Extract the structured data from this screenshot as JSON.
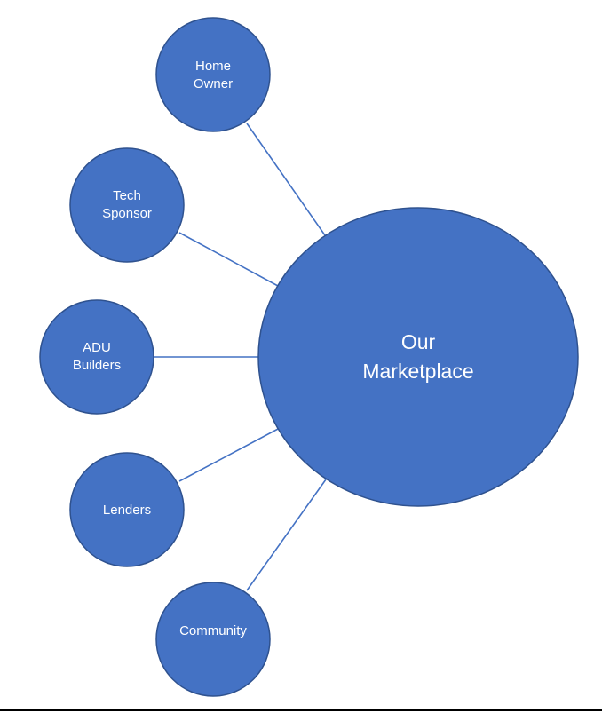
{
  "center": {
    "lines": [
      "Our",
      "Marketplace"
    ]
  },
  "nodes": [
    {
      "id": "home-owner",
      "lines": [
        "Home",
        "Owner"
      ]
    },
    {
      "id": "tech-sponsor",
      "lines": [
        "Tech",
        "Sponsor"
      ]
    },
    {
      "id": "adu-builders",
      "lines": [
        "ADU",
        "Builders"
      ]
    },
    {
      "id": "lenders",
      "lines": [
        "Lenders"
      ]
    },
    {
      "id": "community",
      "lines": [
        "Community"
      ]
    }
  ],
  "colors": {
    "fill": "#4472C4",
    "stroke": "#2F528F",
    "text": "#ffffff",
    "line": "#4472C4"
  }
}
